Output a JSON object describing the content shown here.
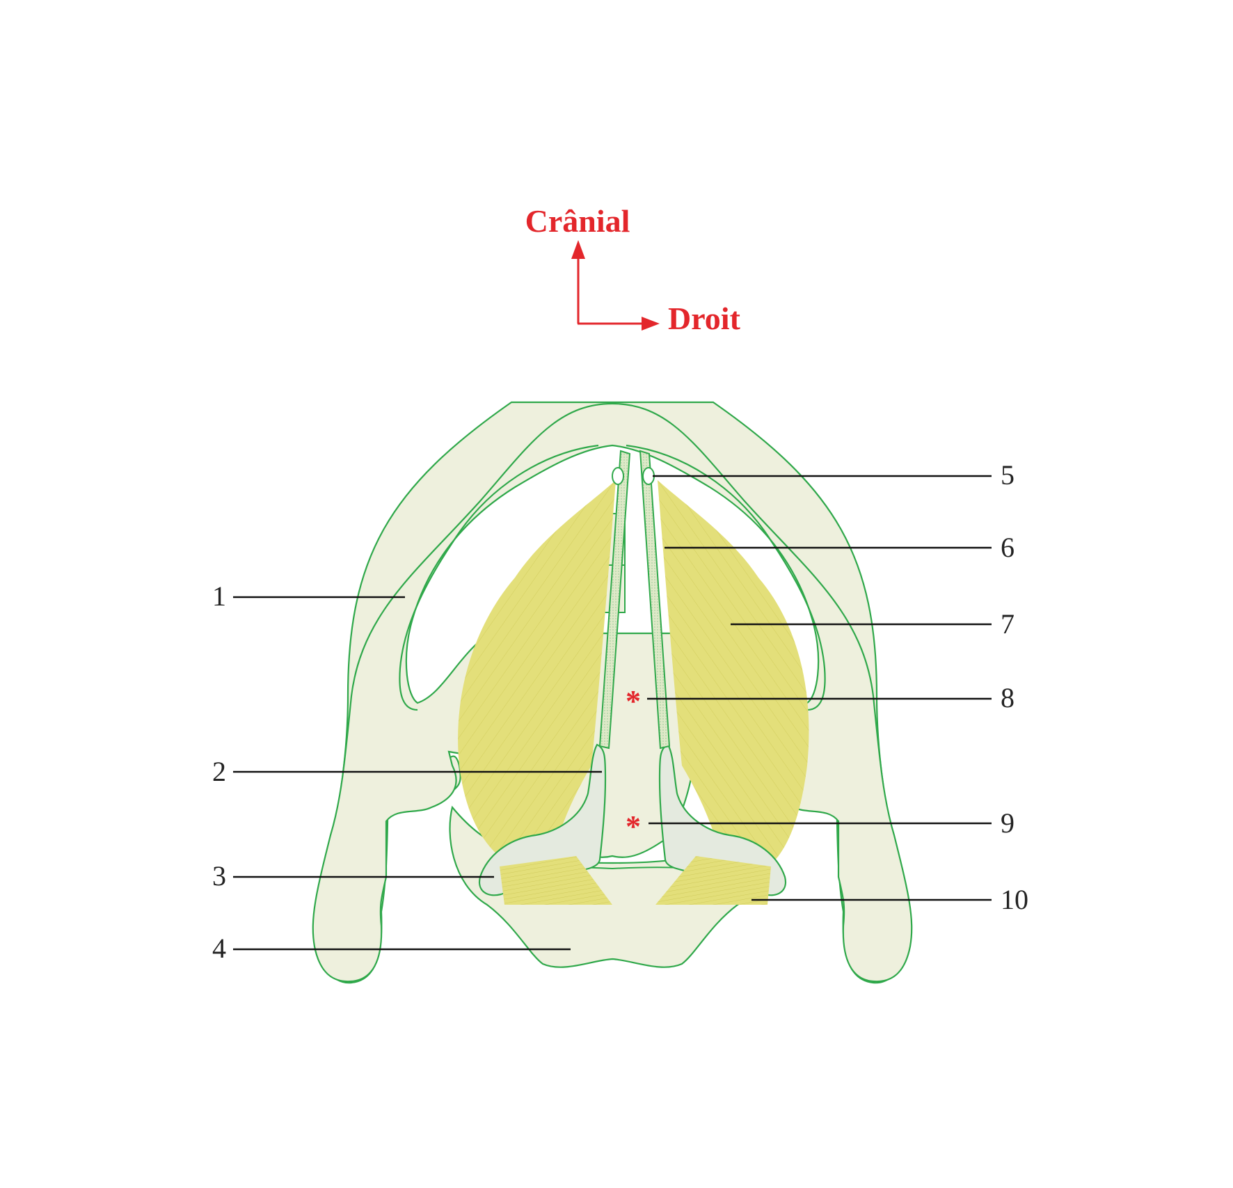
{
  "orientation": {
    "up_label": "Crânial",
    "right_label": "Droit",
    "color": "#e3262b"
  },
  "markers": {
    "asterisk_8": "*",
    "asterisk_9": "*"
  },
  "labels": [
    "1",
    "2",
    "3",
    "4",
    "5",
    "6",
    "7",
    "8",
    "9",
    "10"
  ],
  "colors": {
    "cartilage_fill": "#eef0dd",
    "outline": "#2fa84a",
    "muscle_fill": "#e3df7a",
    "arytenoid_fill": "#e4eadf",
    "leader_line": "#111111",
    "asterisk": "#e3262b"
  }
}
